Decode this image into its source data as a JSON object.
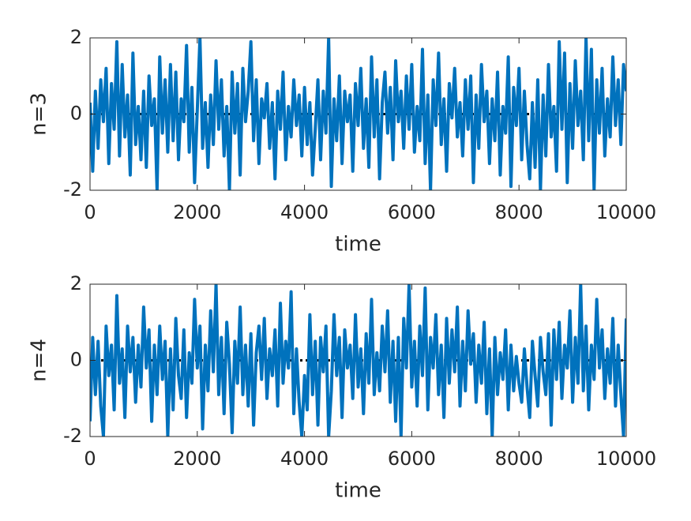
{
  "chart_data": [
    {
      "type": "line",
      "ylabel": "n=3",
      "xlabel": "time",
      "xlim": [
        0,
        10000
      ],
      "xticks": [
        0,
        2000,
        4000,
        6000,
        8000,
        10000
      ],
      "ylim": [
        -2,
        2
      ],
      "yticks": [
        -2,
        0,
        2
      ],
      "hline": {
        "value": 0,
        "color": "#000000",
        "style": "dotted"
      },
      "x": [
        0,
        50,
        100,
        150,
        200,
        250,
        300,
        350,
        400,
        450,
        500,
        550,
        600,
        650,
        700,
        750,
        800,
        850,
        900,
        950,
        1000,
        1050,
        1100,
        1150,
        1200,
        1250,
        1300,
        1350,
        1400,
        1450,
        1500,
        1550,
        1600,
        1650,
        1700,
        1750,
        1800,
        1850,
        1900,
        1950,
        2000,
        2050,
        2100,
        2150,
        2200,
        2250,
        2300,
        2350,
        2400,
        2450,
        2500,
        2550,
        2600,
        2650,
        2700,
        2750,
        2800,
        2850,
        2900,
        2950,
        3000,
        3050,
        3100,
        3150,
        3200,
        3250,
        3300,
        3350,
        3400,
        3450,
        3500,
        3550,
        3600,
        3650,
        3700,
        3750,
        3800,
        3850,
        3900,
        3950,
        4000,
        4050,
        4100,
        4150,
        4200,
        4250,
        4300,
        4350,
        4400,
        4450,
        4500,
        4550,
        4600,
        4650,
        4700,
        4750,
        4800,
        4850,
        4900,
        4950,
        5000,
        5050,
        5100,
        5150,
        5200,
        5250,
        5300,
        5350,
        5400,
        5450,
        5500,
        5550,
        5600,
        5650,
        5700,
        5750,
        5800,
        5850,
        5900,
        5950,
        6000,
        6050,
        6100,
        6150,
        6200,
        6250,
        6300,
        6350,
        6400,
        6450,
        6500,
        6550,
        6600,
        6650,
        6700,
        6750,
        6800,
        6850,
        6900,
        6950,
        7000,
        7050,
        7100,
        7150,
        7200,
        7250,
        7300,
        7350,
        7400,
        7450,
        7500,
        7550,
        7600,
        7650,
        7700,
        7750,
        7800,
        7850,
        7900,
        7950,
        8000,
        8050,
        8100,
        8150,
        8200,
        8250,
        8300,
        8350,
        8400,
        8450,
        8500,
        8550,
        8600,
        8650,
        8700,
        8750,
        8800,
        8850,
        8900,
        8950,
        9000,
        9050,
        9100,
        9150,
        9200,
        9250,
        9300,
        9350,
        9400,
        9450,
        9500,
        9550,
        9600,
        9650,
        9700,
        9750,
        9800,
        9850,
        9900,
        9950,
        10000
      ],
      "series": [
        {
          "color": "#0072bd",
          "values": [
            0.3,
            -1.5,
            0.6,
            -0.9,
            0.9,
            -0.2,
            1.2,
            -1.3,
            0.8,
            -0.4,
            1.9,
            -1.1,
            1.3,
            -0.6,
            0.5,
            -1.6,
            1.6,
            -0.8,
            0.2,
            -1.2,
            0.6,
            -1.4,
            1.0,
            -0.3,
            0.4,
            -2.0,
            1.5,
            -0.5,
            0.9,
            -1.0,
            1.3,
            -0.7,
            1.1,
            -1.2,
            0.4,
            -0.2,
            1.8,
            -1.0,
            0.7,
            -1.8,
            0.1,
            2.0,
            -0.9,
            0.3,
            -1.4,
            0.5,
            -0.8,
            1.4,
            -0.4,
            0.9,
            -1.1,
            0.2,
            -2.0,
            1.1,
            -0.5,
            0.8,
            -1.6,
            1.2,
            -0.2,
            0.6,
            1.9,
            -0.7,
            0.9,
            -1.3,
            0.4,
            -0.1,
            0.8,
            -0.9,
            0.3,
            -1.7,
            0.6,
            -0.4,
            1.1,
            -1.2,
            0.2,
            -0.6,
            0.9,
            -0.3,
            0.5,
            -1.1,
            0.7,
            -0.8,
            0.3,
            -1.6,
            -0.4,
            0.9,
            -1.2,
            0.6,
            -0.5,
            2.0,
            -1.9,
            0.4,
            -0.7,
            1.0,
            -1.3,
            0.6,
            -0.2,
            0.5,
            -1.5,
            0.8,
            -0.3,
            1.2,
            -0.9,
            0.4,
            -1.4,
            1.5,
            -0.6,
            0.9,
            -1.7,
            0.3,
            1.1,
            -0.5,
            0.7,
            -1.2,
            1.4,
            -0.2,
            0.6,
            -0.9,
            1.0,
            -0.4,
            1.3,
            -1.0,
            0.2,
            -0.7,
            1.7,
            -1.3,
            0.5,
            -2.0,
            0.9,
            -0.3,
            1.6,
            -0.8,
            0.4,
            -1.5,
            0.8,
            -0.1,
            1.2,
            -0.6,
            0.3,
            -1.1,
            0.9,
            -0.4,
            1.0,
            -1.8,
            0.5,
            -0.9,
            1.3,
            -0.2,
            0.6,
            -1.3,
            0.4,
            -0.7,
            1.1,
            -1.6,
            0.2,
            -0.5,
            1.5,
            -1.9,
            0.7,
            -0.3,
            1.2,
            -1.2,
            0.6,
            -0.8,
            -1.7,
            0.3,
            -1.4,
            0.9,
            -2.0,
            0.5,
            -1.1,
            1.3,
            -0.6,
            0.2,
            -1.5,
            1.9,
            -0.4,
            1.6,
            -1.8,
            0.8,
            -0.9,
            1.4,
            -0.3,
            0.6,
            -1.2,
            2.0,
            -0.7,
            1.7,
            -2.0,
            0.9,
            -0.5,
            1.2,
            -1.1,
            0.4,
            -0.6,
            1.5,
            -0.3,
            0.9,
            -0.8,
            1.3,
            0.6
          ]
        }
      ]
    },
    {
      "type": "line",
      "ylabel": "n=4",
      "xlabel": "time",
      "xlim": [
        0,
        10000
      ],
      "xticks": [
        0,
        2000,
        4000,
        6000,
        8000,
        10000
      ],
      "ylim": [
        -2,
        2
      ],
      "yticks": [
        -2,
        0,
        2
      ],
      "hline": {
        "value": 0,
        "color": "#000000",
        "style": "dotted"
      },
      "x": [
        0,
        50,
        100,
        150,
        200,
        250,
        300,
        350,
        400,
        450,
        500,
        550,
        600,
        650,
        700,
        750,
        800,
        850,
        900,
        950,
        1000,
        1050,
        1100,
        1150,
        1200,
        1250,
        1300,
        1350,
        1400,
        1450,
        1500,
        1550,
        1600,
        1650,
        1700,
        1750,
        1800,
        1850,
        1900,
        1950,
        2000,
        2050,
        2100,
        2150,
        2200,
        2250,
        2300,
        2350,
        2400,
        2450,
        2500,
        2550,
        2600,
        2650,
        2700,
        2750,
        2800,
        2850,
        2900,
        2950,
        3000,
        3050,
        3100,
        3150,
        3200,
        3250,
        3300,
        3350,
        3400,
        3450,
        3500,
        3550,
        3600,
        3650,
        3700,
        3750,
        3800,
        3850,
        3900,
        3950,
        4000,
        4050,
        4100,
        4150,
        4200,
        4250,
        4300,
        4350,
        4400,
        4450,
        4500,
        4550,
        4600,
        4650,
        4700,
        4750,
        4800,
        4850,
        4900,
        4950,
        5000,
        5050,
        5100,
        5150,
        5200,
        5250,
        5300,
        5350,
        5400,
        5450,
        5500,
        5550,
        5600,
        5650,
        5700,
        5750,
        5800,
        5850,
        5900,
        5950,
        6000,
        6050,
        6100,
        6150,
        6200,
        6250,
        6300,
        6350,
        6400,
        6450,
        6500,
        6550,
        6600,
        6650,
        6700,
        6750,
        6800,
        6850,
        6900,
        6950,
        7000,
        7050,
        7100,
        7150,
        7200,
        7250,
        7300,
        7350,
        7400,
        7450,
        7500,
        7550,
        7600,
        7650,
        7700,
        7750,
        7800,
        7850,
        7900,
        7950,
        8000,
        8050,
        8100,
        8150,
        8200,
        8250,
        8300,
        8350,
        8400,
        8450,
        8500,
        8550,
        8600,
        8650,
        8700,
        8750,
        8800,
        8850,
        8900,
        8950,
        9000,
        9050,
        9100,
        9150,
        9200,
        9250,
        9300,
        9350,
        9400,
        9450,
        9500,
        9550,
        9600,
        9650,
        9700,
        9750,
        9800,
        9850,
        9900,
        9950,
        10000
      ],
      "series": [
        {
          "color": "#0072bd",
          "values": [
            -1.6,
            0.6,
            -0.9,
            0.5,
            -1.2,
            -2.0,
            0.9,
            -0.4,
            0.4,
            -1.3,
            1.7,
            -0.6,
            0.3,
            -1.5,
            0.9,
            -0.3,
            0.6,
            -1.1,
            0.4,
            -0.7,
            1.4,
            -0.2,
            0.8,
            -1.6,
            0.4,
            -0.9,
            0.9,
            -0.5,
            0.5,
            -2.0,
            0.3,
            -1.3,
            1.1,
            -0.4,
            -1.0,
            0.8,
            -1.5,
            0.2,
            -0.6,
            1.6,
            -0.2,
            0.9,
            -1.8,
            0.4,
            -0.8,
            1.3,
            -0.3,
            2.0,
            -0.9,
            0.6,
            -1.4,
            1.0,
            -0.1,
            -1.9,
            0.5,
            -0.6,
            1.4,
            -0.9,
            0.4,
            -1.2,
            0.7,
            -1.7,
            0.2,
            0.9,
            -0.5,
            1.1,
            -1.0,
            0.3,
            -0.4,
            0.8,
            -1.2,
            1.5,
            -0.6,
            0.5,
            -0.2,
            1.8,
            -1.4,
            0.3,
            -1.1,
            -2.0,
            -0.4,
            -1.3,
            1.2,
            -0.9,
            0.5,
            -1.7,
            0.6,
            -0.3,
            0.9,
            -2.0,
            -0.8,
            1.2,
            -0.4,
            0.6,
            -1.5,
            0.8,
            -0.2,
            0.4,
            -1.0,
            1.2,
            -0.7,
            0.3,
            -1.4,
            0.7,
            -0.6,
            1.6,
            -0.9,
            0.2,
            -0.8,
            0.9,
            -0.3,
            1.3,
            -1.1,
            0.5,
            -1.6,
            0.6,
            -2.0,
            1.1,
            -0.2,
            2.0,
            -0.7,
            0.5,
            -1.2,
            0.9,
            -0.4,
            1.9,
            -1.3,
            0.6,
            -0.2,
            1.2,
            -0.9,
            0.4,
            -1.5,
            1.1,
            -0.6,
            0.8,
            -0.3,
            1.4,
            -1.2,
            0.5,
            -0.8,
            1.3,
            -0.1,
            0.7,
            -1.1,
            0.4,
            -0.6,
            1.0,
            -1.4,
            0.3,
            -2.0,
            0.6,
            -0.9,
            0.2,
            -0.5,
            0.8,
            -1.3,
            0.4,
            -0.8,
            0.1,
            -0.6,
            -1.1,
            0.3,
            -0.7,
            -1.5,
            0.5,
            -0.4,
            -1.2,
            0.6,
            -0.3,
            -0.9,
            0.7,
            -1.7,
            0.8,
            -0.5,
            1.0,
            -1.0,
            0.4,
            -0.2,
            1.3,
            -1.1,
            0.6,
            -0.6,
            2.0,
            -0.8,
            0.9,
            -1.3,
            0.4,
            -0.5,
            1.6,
            -0.2,
            0.8,
            -1.0,
            0.3,
            -0.6,
            1.1,
            -1.2,
            0.4,
            -0.9,
            -2.0,
            1.1
          ]
        }
      ]
    }
  ]
}
